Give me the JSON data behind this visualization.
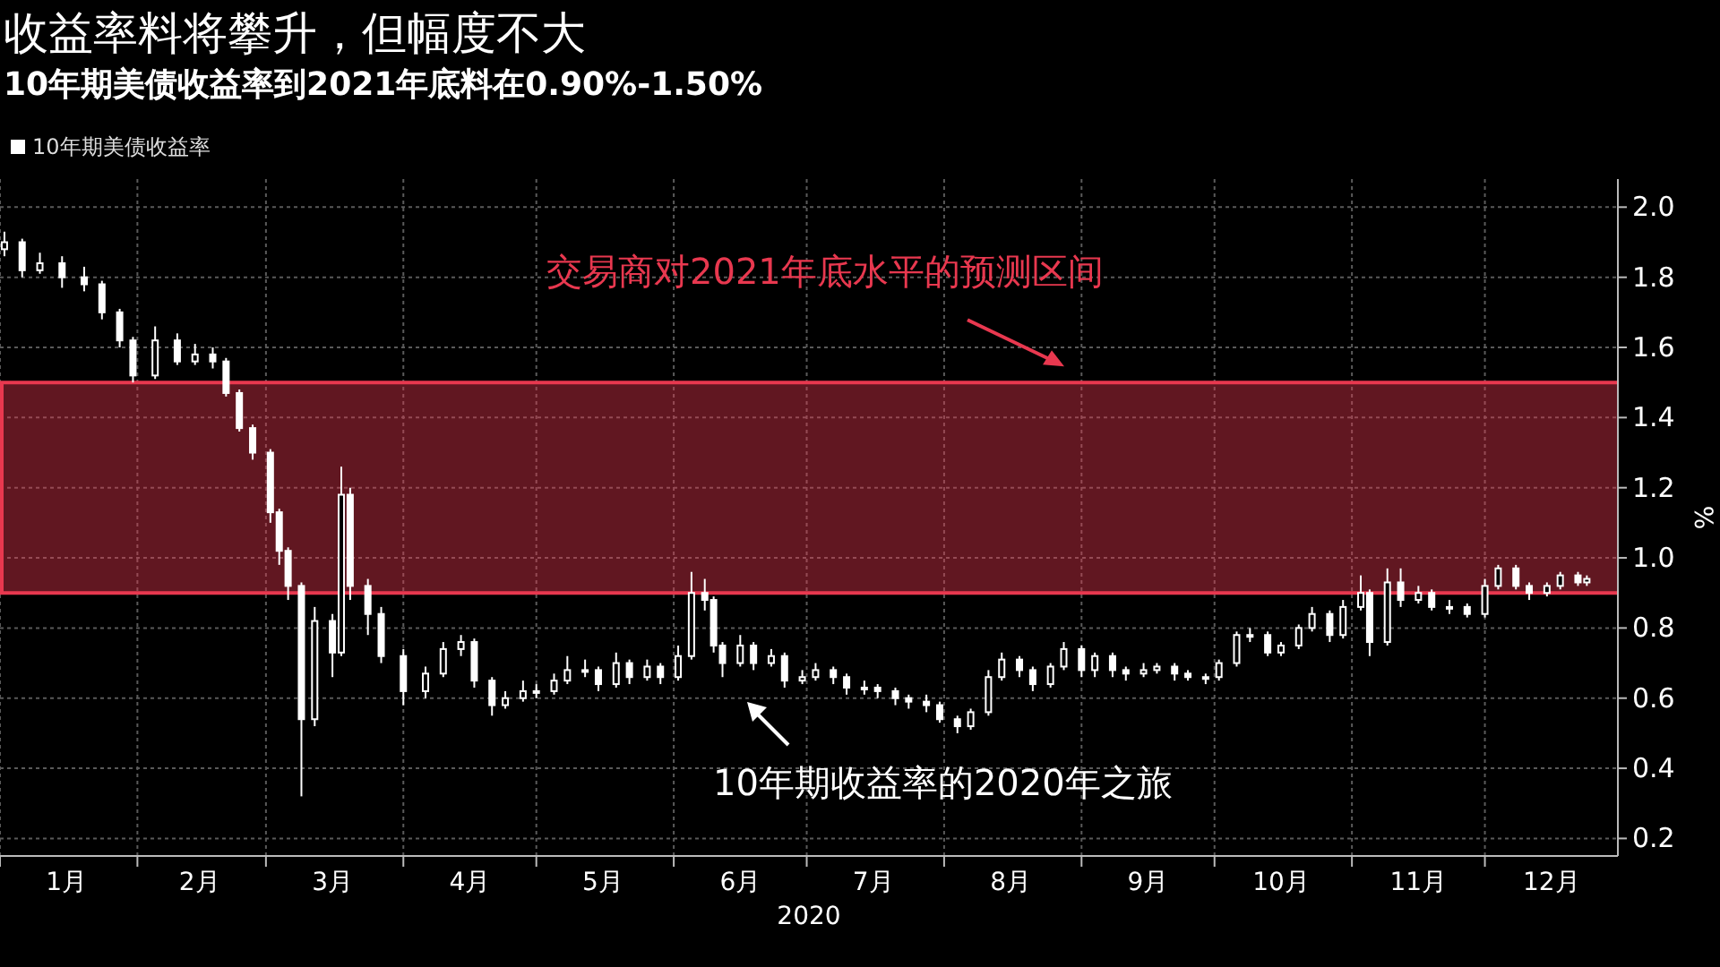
{
  "chart_data": {
    "type": "candlestick",
    "title": "收益率料将攀升，但幅度不大",
    "subtitle": "10年期美债收益率到2021年底料在0.90%-1.50%",
    "xlabel": "2020",
    "ylabel": "%",
    "legend": "top left",
    "grid": true,
    "xlim": [
      "2020-01-01",
      "2020-12-31"
    ],
    "xticks": [
      {
        "value": "2020-01-01",
        "label": null
      },
      {
        "value": "2020-02-01",
        "label": null
      },
      {
        "value": "2020-03-01",
        "label": null
      },
      {
        "value": "2020-04-01",
        "label": null
      },
      {
        "value": "2020-05-01",
        "label": null
      },
      {
        "value": "2020-06-01",
        "label": null
      },
      {
        "value": "2020-07-01",
        "label": null
      },
      {
        "value": "2020-08-01",
        "label": null
      },
      {
        "value": "2020-09-01",
        "label": null
      },
      {
        "value": "2020-10-01",
        "label": null
      },
      {
        "value": "2020-11-01",
        "label": null
      },
      {
        "value": "2020-12-01",
        "label": null
      },
      {
        "value": "2020-01-16",
        "label": "1月"
      },
      {
        "value": "2020-02-15",
        "label": "2月"
      },
      {
        "value": "2020-03-16",
        "label": "3月"
      },
      {
        "value": "2020-04-16",
        "label": "4月"
      },
      {
        "value": "2020-05-16",
        "label": "5月"
      },
      {
        "value": "2020-06-16",
        "label": "6月"
      },
      {
        "value": "2020-07-16",
        "label": "7月"
      },
      {
        "value": "2020-08-16",
        "label": "8月"
      },
      {
        "value": "2020-09-16",
        "label": "9月"
      },
      {
        "value": "2020-10-16",
        "label": "10月"
      },
      {
        "value": "2020-11-16",
        "label": "11月"
      },
      {
        "value": "2020-12-16",
        "label": "12月"
      }
    ],
    "ylim": [
      0.15,
      2.08
    ],
    "yticks": [
      0.2,
      0.4,
      0.6,
      0.8,
      {
        "value": 1,
        "label": "1.0"
      },
      1.2,
      1.4,
      1.6,
      1.8,
      {
        "value": 2,
        "label": "2.0"
      }
    ],
    "bands": [
      {
        "axis": "y",
        "from": 0.9,
        "to": 1.5,
        "label": "交易商对2021年底水平的预测区间",
        "color": "#e8384f"
      }
    ],
    "ref_lines": [
      {
        "axis": "y",
        "value": 0.9,
        "color": "#e8384f"
      },
      {
        "axis": "y",
        "value": 1.5,
        "color": "#e8384f"
      }
    ],
    "annotations": [
      "10年期收益率的2020年之旅"
    ],
    "x": [
      "2020-01-02",
      "2020-01-06",
      "2020-01-10",
      "2020-01-15",
      "2020-01-20",
      "2020-01-24",
      "2020-01-28",
      "2020-01-31",
      "2020-02-05",
      "2020-02-10",
      "2020-02-14",
      "2020-02-18",
      "2020-02-21",
      "2020-02-24",
      "2020-02-27",
      "2020-03-02",
      "2020-03-04",
      "2020-03-06",
      "2020-03-09",
      "2020-03-12",
      "2020-03-16",
      "2020-03-18",
      "2020-03-20",
      "2020-03-24",
      "2020-03-27",
      "2020-04-01",
      "2020-04-06",
      "2020-04-10",
      "2020-04-14",
      "2020-04-17",
      "2020-04-21",
      "2020-04-24",
      "2020-04-28",
      "2020-05-01",
      "2020-05-05",
      "2020-05-08",
      "2020-05-12",
      "2020-05-15",
      "2020-05-19",
      "2020-05-22",
      "2020-05-26",
      "2020-05-29",
      "2020-06-02",
      "2020-06-05",
      "2020-06-08",
      "2020-06-10",
      "2020-06-12",
      "2020-06-16",
      "2020-06-19",
      "2020-06-23",
      "2020-06-26",
      "2020-06-30",
      "2020-07-03",
      "2020-07-07",
      "2020-07-10",
      "2020-07-14",
      "2020-07-17",
      "2020-07-21",
      "2020-07-24",
      "2020-07-28",
      "2020-07-31",
      "2020-08-04",
      "2020-08-07",
      "2020-08-11",
      "2020-08-14",
      "2020-08-18",
      "2020-08-21",
      "2020-08-25",
      "2020-08-28",
      "2020-09-01",
      "2020-09-04",
      "2020-09-08",
      "2020-09-11",
      "2020-09-15",
      "2020-09-18",
      "2020-09-22",
      "2020-09-25",
      "2020-09-29",
      "2020-10-02",
      "2020-10-06",
      "2020-10-09",
      "2020-10-13",
      "2020-10-16",
      "2020-10-20",
      "2020-10-23",
      "2020-10-27",
      "2020-10-30",
      "2020-11-03",
      "2020-11-05",
      "2020-11-09",
      "2020-11-12",
      "2020-11-16",
      "2020-11-19",
      "2020-11-23",
      "2020-11-27",
      "2020-12-01",
      "2020-12-04",
      "2020-12-08",
      "2020-12-11",
      "2020-12-15",
      "2020-12-18",
      "2020-12-22",
      "2020-12-24"
    ],
    "series": [
      {
        "name": "10年期美债收益率",
        "color": "#ffffff",
        "ohlc": [
          [
            1.88,
            1.93,
            1.86,
            1.9
          ],
          [
            1.9,
            1.91,
            1.8,
            1.82
          ],
          [
            1.82,
            1.87,
            1.81,
            1.84
          ],
          [
            1.84,
            1.86,
            1.77,
            1.8
          ],
          [
            1.8,
            1.83,
            1.76,
            1.78
          ],
          [
            1.78,
            1.79,
            1.68,
            1.7
          ],
          [
            1.7,
            1.71,
            1.6,
            1.62
          ],
          [
            1.62,
            1.63,
            1.5,
            1.52
          ],
          [
            1.52,
            1.66,
            1.51,
            1.62
          ],
          [
            1.62,
            1.64,
            1.55,
            1.56
          ],
          [
            1.56,
            1.61,
            1.55,
            1.58
          ],
          [
            1.58,
            1.6,
            1.54,
            1.56
          ],
          [
            1.56,
            1.57,
            1.46,
            1.47
          ],
          [
            1.47,
            1.48,
            1.36,
            1.37
          ],
          [
            1.37,
            1.38,
            1.28,
            1.3
          ],
          [
            1.3,
            1.31,
            1.1,
            1.13
          ],
          [
            1.13,
            1.14,
            0.98,
            1.02
          ],
          [
            1.02,
            1.03,
            0.88,
            0.92
          ],
          [
            0.92,
            0.93,
            0.32,
            0.54
          ],
          [
            0.54,
            0.86,
            0.52,
            0.82
          ],
          [
            0.82,
            0.84,
            0.66,
            0.73
          ],
          [
            0.73,
            1.26,
            0.72,
            1.18
          ],
          [
            1.18,
            1.2,
            0.88,
            0.92
          ],
          [
            0.92,
            0.94,
            0.78,
            0.84
          ],
          [
            0.84,
            0.86,
            0.7,
            0.72
          ],
          [
            0.72,
            0.74,
            0.58,
            0.62
          ],
          [
            0.62,
            0.69,
            0.6,
            0.67
          ],
          [
            0.67,
            0.76,
            0.66,
            0.74
          ],
          [
            0.74,
            0.78,
            0.72,
            0.76
          ],
          [
            0.76,
            0.77,
            0.63,
            0.65
          ],
          [
            0.65,
            0.66,
            0.55,
            0.58
          ],
          [
            0.58,
            0.62,
            0.57,
            0.6
          ],
          [
            0.6,
            0.65,
            0.59,
            0.62
          ],
          [
            0.62,
            0.64,
            0.6,
            0.62
          ],
          [
            0.62,
            0.67,
            0.61,
            0.65
          ],
          [
            0.65,
            0.72,
            0.64,
            0.68
          ],
          [
            0.68,
            0.71,
            0.66,
            0.68
          ],
          [
            0.68,
            0.69,
            0.62,
            0.64
          ],
          [
            0.64,
            0.73,
            0.63,
            0.7
          ],
          [
            0.7,
            0.71,
            0.64,
            0.66
          ],
          [
            0.66,
            0.71,
            0.65,
            0.69
          ],
          [
            0.69,
            0.7,
            0.64,
            0.66
          ],
          [
            0.66,
            0.75,
            0.65,
            0.72
          ],
          [
            0.72,
            0.96,
            0.71,
            0.9
          ],
          [
            0.9,
            0.94,
            0.85,
            0.88
          ],
          [
            0.88,
            0.89,
            0.73,
            0.75
          ],
          [
            0.75,
            0.76,
            0.66,
            0.7
          ],
          [
            0.7,
            0.78,
            0.69,
            0.75
          ],
          [
            0.75,
            0.76,
            0.68,
            0.7
          ],
          [
            0.7,
            0.74,
            0.69,
            0.72
          ],
          [
            0.72,
            0.73,
            0.63,
            0.65
          ],
          [
            0.65,
            0.68,
            0.64,
            0.66
          ],
          [
            0.66,
            0.7,
            0.65,
            0.68
          ],
          [
            0.68,
            0.69,
            0.64,
            0.66
          ],
          [
            0.66,
            0.67,
            0.61,
            0.63
          ],
          [
            0.63,
            0.65,
            0.61,
            0.63
          ],
          [
            0.63,
            0.64,
            0.6,
            0.62
          ],
          [
            0.62,
            0.63,
            0.58,
            0.6
          ],
          [
            0.6,
            0.61,
            0.57,
            0.59
          ],
          [
            0.59,
            0.61,
            0.56,
            0.58
          ],
          [
            0.58,
            0.59,
            0.53,
            0.54
          ],
          [
            0.54,
            0.55,
            0.5,
            0.52
          ],
          [
            0.52,
            0.57,
            0.51,
            0.56
          ],
          [
            0.56,
            0.68,
            0.55,
            0.66
          ],
          [
            0.66,
            0.73,
            0.65,
            0.71
          ],
          [
            0.71,
            0.72,
            0.66,
            0.68
          ],
          [
            0.68,
            0.69,
            0.62,
            0.64
          ],
          [
            0.64,
            0.7,
            0.63,
            0.69
          ],
          [
            0.69,
            0.76,
            0.68,
            0.74
          ],
          [
            0.74,
            0.75,
            0.66,
            0.68
          ],
          [
            0.68,
            0.73,
            0.66,
            0.72
          ],
          [
            0.72,
            0.73,
            0.66,
            0.68
          ],
          [
            0.68,
            0.69,
            0.65,
            0.67
          ],
          [
            0.67,
            0.7,
            0.66,
            0.68
          ],
          [
            0.68,
            0.7,
            0.67,
            0.69
          ],
          [
            0.69,
            0.7,
            0.65,
            0.67
          ],
          [
            0.67,
            0.68,
            0.65,
            0.66
          ],
          [
            0.66,
            0.67,
            0.64,
            0.66
          ],
          [
            0.66,
            0.71,
            0.65,
            0.7
          ],
          [
            0.7,
            0.79,
            0.69,
            0.78
          ],
          [
            0.78,
            0.8,
            0.76,
            0.78
          ],
          [
            0.78,
            0.79,
            0.72,
            0.73
          ],
          [
            0.73,
            0.76,
            0.72,
            0.75
          ],
          [
            0.75,
            0.81,
            0.74,
            0.8
          ],
          [
            0.8,
            0.86,
            0.79,
            0.84
          ],
          [
            0.84,
            0.85,
            0.76,
            0.78
          ],
          [
            0.78,
            0.88,
            0.77,
            0.86
          ],
          [
            0.86,
            0.95,
            0.85,
            0.9
          ],
          [
            0.9,
            0.91,
            0.72,
            0.76
          ],
          [
            0.76,
            0.97,
            0.75,
            0.93
          ],
          [
            0.93,
            0.97,
            0.86,
            0.88
          ],
          [
            0.88,
            0.92,
            0.87,
            0.9
          ],
          [
            0.9,
            0.91,
            0.85,
            0.86
          ],
          [
            0.86,
            0.88,
            0.84,
            0.86
          ],
          [
            0.86,
            0.87,
            0.83,
            0.84
          ],
          [
            0.84,
            0.94,
            0.83,
            0.92
          ],
          [
            0.92,
            0.98,
            0.91,
            0.97
          ],
          [
            0.97,
            0.98,
            0.91,
            0.92
          ],
          [
            0.92,
            0.93,
            0.88,
            0.9
          ],
          [
            0.9,
            0.93,
            0.89,
            0.92
          ],
          [
            0.92,
            0.96,
            0.91,
            0.95
          ],
          [
            0.95,
            0.96,
            0.92,
            0.93
          ],
          [
            0.93,
            0.95,
            0.92,
            0.94
          ]
        ]
      }
    ]
  }
}
